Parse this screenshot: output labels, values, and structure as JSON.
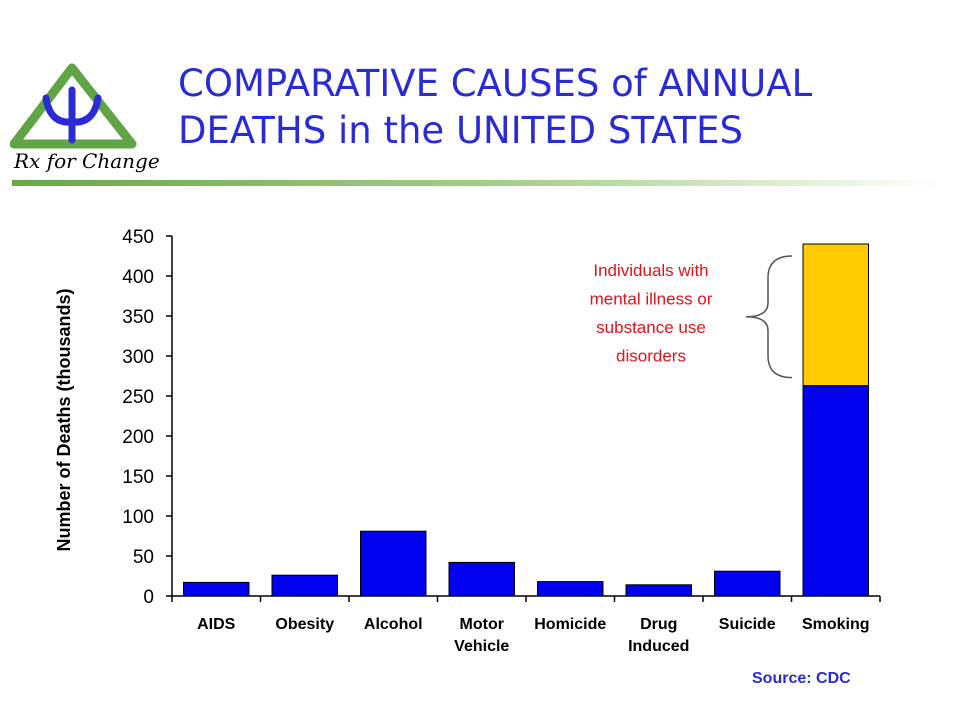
{
  "slide": {
    "title_line1": "COMPARATIVE CAUSES of ANNUAL",
    "title_line2": "DEATHS in the UNITED STATES",
    "logo_text": "Rx for Change",
    "source": "Source: CDC"
  },
  "colors": {
    "title": "#2b2bd6",
    "bar": "#0000ee",
    "highlight": "#ffcc00",
    "annotation": "#e0141a",
    "logo_green": "#5fa445",
    "logo_blue": "#2b2bd6"
  },
  "chart_data": {
    "type": "bar",
    "stacked": true,
    "ylabel": "Number of Deaths (thousands)",
    "ylim": [
      0,
      450
    ],
    "yticks": [
      0,
      50,
      100,
      150,
      200,
      250,
      300,
      350,
      400,
      450
    ],
    "categories": [
      [
        "AIDS"
      ],
      [
        "Obesity"
      ],
      [
        "Alcohol"
      ],
      [
        "Motor",
        "Vehicle"
      ],
      [
        "Homicide"
      ],
      [
        "Drug",
        "Induced"
      ],
      [
        "Suicide"
      ],
      [
        "Smoking"
      ]
    ],
    "series": [
      {
        "values": [
          17,
          26,
          81,
          42,
          18,
          14,
          31,
          263
        ]
      },
      {
        "values": [
          0,
          0,
          0,
          0,
          0,
          0,
          0,
          177
        ]
      }
    ],
    "annotation": {
      "lines": [
        "Individuals with",
        "mental illness or",
        "substance use",
        "disorders"
      ],
      "category_index": 7,
      "series_index": 1
    }
  }
}
